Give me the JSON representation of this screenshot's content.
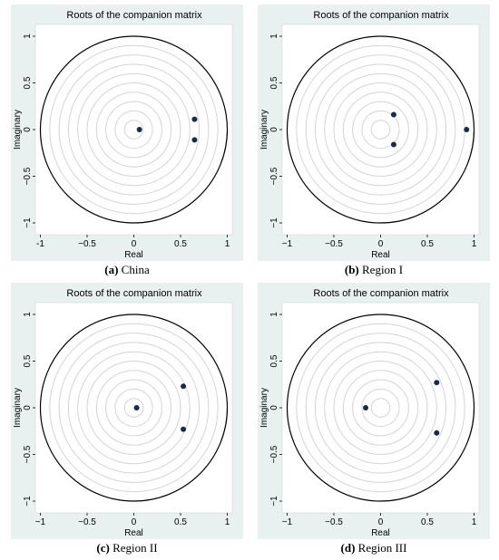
{
  "chart_data": [
    {
      "type": "scatter",
      "title": "Roots of the companion matrix",
      "xlabel": "Real",
      "ylabel": "Imaginary",
      "xlim": [
        -1,
        1
      ],
      "ylim": [
        -1,
        1
      ],
      "xticks": [
        "-1",
        "−0.5",
        "0",
        "0.5",
        "1"
      ],
      "yticks": [
        "−1",
        "−0.5",
        "0",
        "0.5",
        "1"
      ],
      "grid": true,
      "unit_circle": true,
      "points": [
        {
          "x": 0.06,
          "y": 0.0
        },
        {
          "x": 0.65,
          "y": 0.11
        },
        {
          "x": 0.65,
          "y": -0.11
        }
      ],
      "caption_letter": "(a)",
      "caption_text": " China"
    },
    {
      "type": "scatter",
      "title": "Roots of the companion matrix",
      "xlabel": "Real",
      "ylabel": "Imaginary",
      "xlim": [
        -1,
        1
      ],
      "ylim": [
        -1,
        1
      ],
      "xticks": [
        "−1",
        "−0.5",
        "0",
        "0.5",
        "1"
      ],
      "yticks": [
        "−1",
        "−0.5",
        "0",
        "0.5",
        "1"
      ],
      "grid": true,
      "unit_circle": true,
      "points": [
        {
          "x": 0.92,
          "y": 0.0
        },
        {
          "x": 0.14,
          "y": 0.16
        },
        {
          "x": 0.14,
          "y": -0.16
        }
      ],
      "caption_letter": "(b)",
      "caption_text": " Region I"
    },
    {
      "type": "scatter",
      "title": "Roots of the companion matrix",
      "xlabel": "Real",
      "ylabel": "Imaginary",
      "xlim": [
        -1,
        1
      ],
      "ylim": [
        -1,
        1
      ],
      "xticks": [
        "−1",
        "−0.5",
        "0",
        "0.5",
        "1"
      ],
      "yticks": [
        "−1",
        "−0.5",
        "0",
        "0.5",
        "1"
      ],
      "grid": true,
      "unit_circle": true,
      "points": [
        {
          "x": 0.03,
          "y": 0.0
        },
        {
          "x": 0.53,
          "y": 0.23
        },
        {
          "x": 0.53,
          "y": -0.23
        }
      ],
      "caption_letter": "(c)",
      "caption_text": " Region II"
    },
    {
      "type": "scatter",
      "title": "Roots of the companion matrix",
      "xlabel": "Real",
      "ylabel": "Imaginary",
      "xlim": [
        -1,
        1
      ],
      "ylim": [
        -1,
        1
      ],
      "xticks": [
        "−1",
        "−0.5",
        "0",
        "0.5",
        "1"
      ],
      "yticks": [
        "−1",
        "−0.5",
        "0",
        "0.5",
        "1"
      ],
      "grid": true,
      "unit_circle": true,
      "points": [
        {
          "x": -0.16,
          "y": 0.0
        },
        {
          "x": 0.6,
          "y": 0.27
        },
        {
          "x": 0.6,
          "y": -0.27
        }
      ],
      "caption_letter": "(d)",
      "caption_text": " Region III"
    }
  ],
  "colors": {
    "panel_bg": "#e8f0f0",
    "plot_bg": "#ffffff",
    "unit_circle": "#000000",
    "grid_circle": "#d4d4d4",
    "point": "#1a2b4a"
  }
}
